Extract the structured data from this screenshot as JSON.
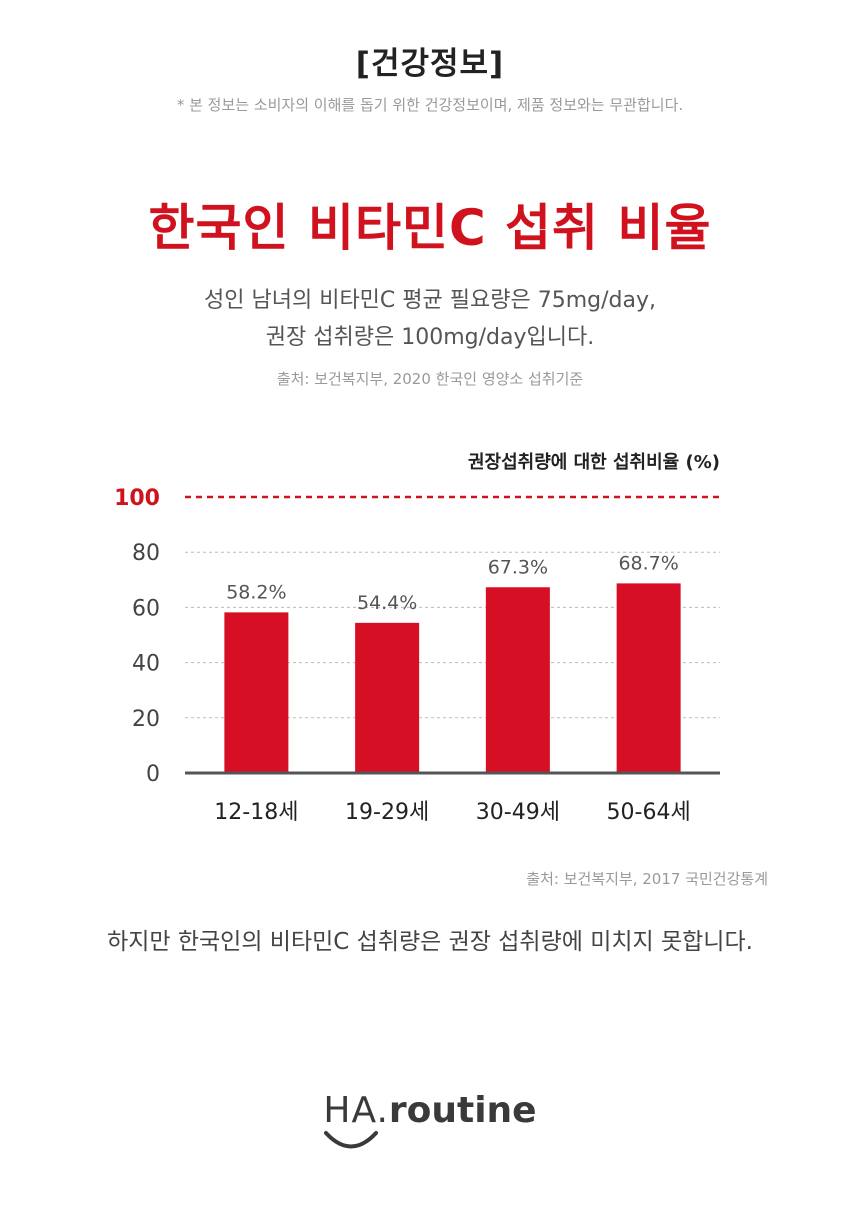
{
  "header": {
    "section_tag": "[건강정보]",
    "disclaimer": "* 본 정보는 소비자의 이해를 돕기 위한 건강정보이며, 제품 정보와는 무관합니다."
  },
  "headline": "한국인 비타민C 섭취 비율",
  "intro": {
    "line1": "성인 남녀의 비타민C 평균 필요량은 75mg/day,",
    "line2": "권장 섭취량은 100mg/day입니다."
  },
  "source_top": "출처: 보건복지부, 2020 한국인 영양소 섭취기준",
  "chart_data": {
    "type": "bar",
    "title": "권장섭취량에 대한 섭취비율 (%)",
    "categories": [
      "12-18세",
      "19-29세",
      "30-49세",
      "50-64세"
    ],
    "values": [
      58.2,
      54.4,
      67.3,
      68.7
    ],
    "value_labels": [
      "58.2%",
      "54.4%",
      "67.3%",
      "68.7%"
    ],
    "ylim": [
      0,
      100
    ],
    "yticks": [
      0,
      20,
      40,
      60,
      80,
      100
    ],
    "reference_line": 100,
    "grid": true,
    "colors": {
      "bar": "#d70f24",
      "reference": "#d0121f",
      "grid": "#bbbbbb",
      "axis": "#555555"
    }
  },
  "source_bottom": "출처: 보건복지부, 2017 국민건강통계",
  "conclusion": "하지만 한국인의 비타민C 섭취량은 권장 섭취량에 미치지 못합니다.",
  "logo": {
    "part1": "HA.",
    "part2": "routine"
  }
}
